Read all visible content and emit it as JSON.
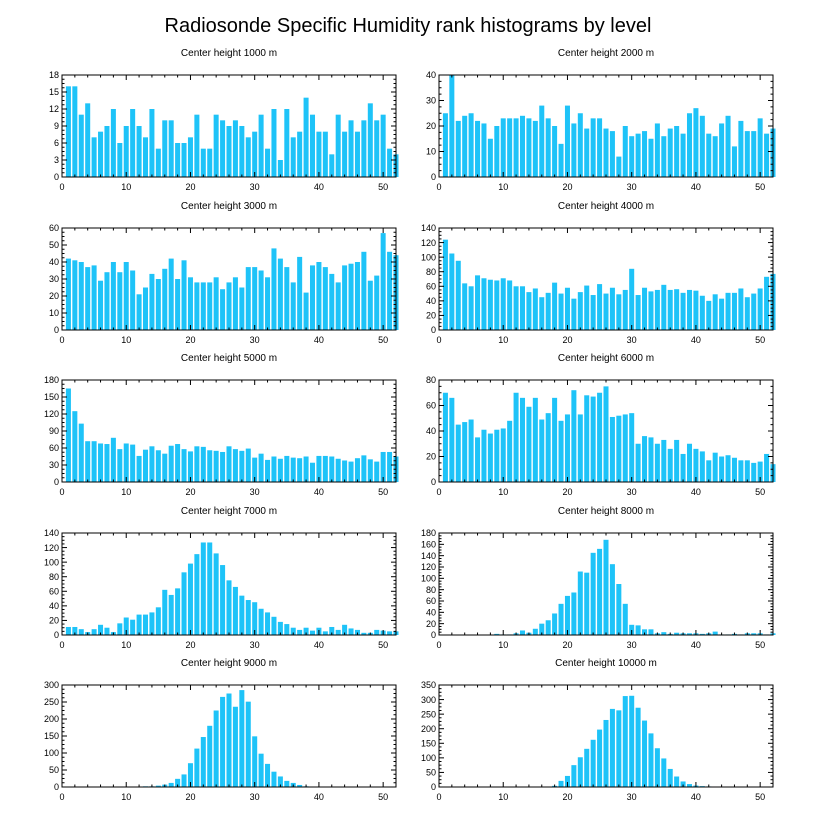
{
  "title": "Radiosonde Specific Humidity rank histograms by level",
  "colors": {
    "bar": "#1ec3f8",
    "axis": "#000000",
    "background": "#ffffff"
  },
  "chart_data": [
    {
      "type": "bar",
      "title": "Center height 1000 m",
      "xlim": [
        0,
        52
      ],
      "ylim": [
        0,
        18
      ],
      "xticks": [
        0,
        10,
        20,
        30,
        40,
        50
      ],
      "yticks": [
        0,
        3,
        6,
        9,
        12,
        15,
        18
      ],
      "values": [
        16,
        16,
        11,
        13,
        7,
        8,
        9,
        12,
        6,
        9,
        12,
        9,
        7,
        12,
        5,
        10,
        10,
        6,
        6,
        7,
        11,
        5,
        5,
        11,
        10,
        9,
        10,
        9,
        7,
        8,
        11,
        5,
        12,
        3,
        12,
        7,
        8,
        14,
        11,
        8,
        8,
        4,
        11,
        8,
        10,
        8,
        10,
        13,
        10,
        11,
        5,
        4
      ]
    },
    {
      "type": "bar",
      "title": "Center height 2000 m",
      "xlim": [
        0,
        52
      ],
      "ylim": [
        0,
        40
      ],
      "xticks": [
        0,
        10,
        20,
        30,
        40,
        50
      ],
      "yticks": [
        0,
        10,
        20,
        30,
        40
      ],
      "values": [
        25,
        40,
        22,
        24,
        25,
        22,
        21,
        15,
        20,
        23,
        23,
        23,
        24,
        23,
        22,
        28,
        23,
        20,
        13,
        28,
        21,
        25,
        19,
        23,
        23,
        19,
        18,
        8,
        20,
        16,
        17,
        18,
        15,
        21,
        16,
        19,
        20,
        17,
        25,
        27,
        24,
        17,
        16,
        21,
        24,
        12,
        22,
        18,
        18,
        23,
        17,
        19
      ]
    },
    {
      "type": "bar",
      "title": "Center height 3000 m",
      "xlim": [
        0,
        52
      ],
      "ylim": [
        0,
        60
      ],
      "xticks": [
        0,
        10,
        20,
        30,
        40,
        50
      ],
      "yticks": [
        0,
        10,
        20,
        30,
        40,
        50,
        60
      ],
      "values": [
        42,
        41,
        40,
        37,
        38,
        29,
        34,
        40,
        34,
        40,
        35,
        21,
        25,
        33,
        30,
        36,
        42,
        30,
        41,
        31,
        28,
        28,
        28,
        31,
        24,
        28,
        31,
        25,
        37,
        37,
        35,
        31,
        48,
        42,
        37,
        28,
        43,
        22,
        38,
        40,
        37,
        33,
        28,
        38,
        39,
        40,
        46,
        29,
        32,
        57,
        46,
        44
      ]
    },
    {
      "type": "bar",
      "title": "Center height 4000 m",
      "xlim": [
        0,
        52
      ],
      "ylim": [
        0,
        140
      ],
      "xticks": [
        0,
        10,
        20,
        30,
        40,
        50
      ],
      "yticks": [
        0,
        20,
        40,
        60,
        80,
        100,
        120,
        140
      ],
      "values": [
        124,
        105,
        95,
        64,
        60,
        75,
        71,
        69,
        68,
        71,
        68,
        60,
        60,
        52,
        57,
        45,
        51,
        65,
        50,
        58,
        43,
        52,
        61,
        48,
        63,
        50,
        58,
        49,
        55,
        84,
        48,
        58,
        53,
        55,
        62,
        55,
        56,
        51,
        55,
        54,
        47,
        40,
        49,
        43,
        51,
        51,
        57,
        45,
        50,
        57,
        73,
        77
      ]
    },
    {
      "type": "bar",
      "title": "Center height 5000 m",
      "xlim": [
        0,
        52
      ],
      "ylim": [
        0,
        180
      ],
      "xticks": [
        0,
        10,
        20,
        30,
        40,
        50
      ],
      "yticks": [
        0,
        30,
        60,
        90,
        120,
        150,
        180
      ],
      "values": [
        165,
        125,
        103,
        72,
        72,
        68,
        67,
        78,
        58,
        68,
        66,
        46,
        57,
        63,
        56,
        50,
        64,
        67,
        58,
        54,
        63,
        62,
        56,
        55,
        53,
        63,
        58,
        55,
        59,
        43,
        50,
        39,
        45,
        41,
        46,
        43,
        42,
        45,
        34,
        46,
        46,
        45,
        41,
        38,
        36,
        42,
        47,
        40,
        36,
        53,
        53,
        45
      ]
    },
    {
      "type": "bar",
      "title": "Center height 6000 m",
      "xlim": [
        0,
        52
      ],
      "ylim": [
        0,
        80
      ],
      "xticks": [
        0,
        10,
        20,
        30,
        40,
        50
      ],
      "yticks": [
        0,
        20,
        40,
        60,
        80
      ],
      "values": [
        70,
        66,
        45,
        47,
        49,
        35,
        41,
        38,
        41,
        42,
        48,
        70,
        66,
        59,
        66,
        49,
        54,
        66,
        48,
        53,
        72,
        53,
        68,
        67,
        70,
        75,
        51,
        52,
        53,
        54,
        30,
        36,
        35,
        30,
        33,
        26,
        33,
        22,
        30,
        26,
        24,
        17,
        23,
        20,
        21,
        19,
        17,
        17,
        15,
        16,
        22,
        14
      ]
    },
    {
      "type": "bar",
      "title": "Center height 7000 m",
      "xlim": [
        0,
        52
      ],
      "ylim": [
        0,
        140
      ],
      "xticks": [
        0,
        10,
        20,
        30,
        40,
        50
      ],
      "yticks": [
        0,
        20,
        40,
        60,
        80,
        100,
        120,
        140
      ],
      "values": [
        11,
        11,
        8,
        4,
        8,
        14,
        10,
        4,
        16,
        24,
        21,
        28,
        28,
        31,
        38,
        62,
        55,
        64,
        86,
        98,
        111,
        127,
        127,
        112,
        96,
        75,
        66,
        54,
        48,
        45,
        36,
        31,
        25,
        18,
        15,
        10,
        7,
        10,
        6,
        10,
        5,
        11,
        7,
        14,
        9,
        7,
        3,
        3,
        7,
        6,
        5,
        5
      ]
    },
    {
      "type": "bar",
      "title": "Center height 8000 m",
      "xlim": [
        0,
        52
      ],
      "ylim": [
        0,
        180
      ],
      "xticks": [
        0,
        10,
        20,
        30,
        40,
        50
      ],
      "yticks": [
        0,
        20,
        40,
        60,
        80,
        100,
        120,
        140,
        160,
        180
      ],
      "values": [
        0,
        0,
        0,
        0,
        0,
        0,
        0,
        0,
        2,
        1,
        1,
        3,
        8,
        4,
        11,
        20,
        26,
        38,
        55,
        69,
        75,
        112,
        110,
        145,
        152,
        168,
        125,
        90,
        55,
        18,
        17,
        10,
        10,
        3,
        5,
        2,
        4,
        3,
        3,
        3,
        2,
        3,
        6,
        1,
        1,
        2,
        1,
        3,
        3,
        3,
        1,
        3
      ]
    },
    {
      "type": "bar",
      "title": "Center height 9000 m",
      "xlim": [
        0,
        52
      ],
      "ylim": [
        0,
        300
      ],
      "xticks": [
        0,
        10,
        20,
        30,
        40,
        50
      ],
      "yticks": [
        0,
        50,
        100,
        150,
        200,
        250,
        300
      ],
      "values": [
        0,
        0,
        0,
        0,
        0,
        0,
        0,
        0,
        0,
        0,
        1,
        1,
        2,
        2,
        4,
        7,
        12,
        24,
        37,
        70,
        113,
        147,
        180,
        225,
        265,
        275,
        236,
        285,
        251,
        149,
        98,
        68,
        45,
        31,
        18,
        12,
        6,
        2,
        0,
        0,
        0,
        0,
        0,
        0,
        0,
        0,
        0,
        0,
        0,
        0,
        0,
        0
      ]
    },
    {
      "type": "bar",
      "title": "Center height 10000 m",
      "xlim": [
        0,
        52
      ],
      "ylim": [
        0,
        350
      ],
      "xticks": [
        0,
        10,
        20,
        30,
        40,
        50
      ],
      "yticks": [
        0,
        50,
        100,
        150,
        200,
        250,
        300,
        350
      ],
      "values": [
        0,
        0,
        0,
        0,
        0,
        0,
        0,
        0,
        0,
        0,
        0,
        0,
        0,
        0,
        0,
        0,
        1,
        4,
        21,
        38,
        75,
        102,
        131,
        162,
        197,
        230,
        268,
        263,
        312,
        313,
        272,
        228,
        184,
        133,
        98,
        62,
        36,
        19,
        10,
        5,
        3,
        2,
        1,
        0,
        0,
        0,
        0,
        0,
        0,
        0,
        0,
        0
      ]
    }
  ]
}
